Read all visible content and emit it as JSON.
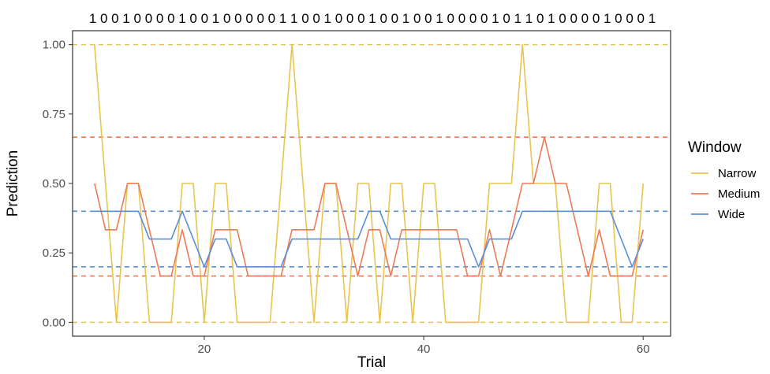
{
  "chart_data": {
    "type": "line",
    "sequence": "1 0 0 1 0 0 0 0 1 0 0 1 0 0 0 0 0 1 1 0 0 1 0 0 0 1 0 0 1 0 0 1 0 0 0 0 1 0 1 1 0 1 0 0 0 0 1 0 0 0 1",
    "xlabel": "Trial",
    "ylabel": "Prediction",
    "xlim": [
      8,
      62.5
    ],
    "ylim": [
      -0.05,
      1.05
    ],
    "x_ticks": [
      20,
      40,
      60
    ],
    "y_ticks": [
      0.0,
      0.25,
      0.5,
      0.75,
      1.0
    ],
    "y_tick_labels": [
      "0.00",
      "0.25",
      "0.50",
      "0.75",
      "1.00"
    ],
    "legend": {
      "title": "Window",
      "position": "right"
    },
    "x": [
      10,
      11,
      12,
      13,
      14,
      15,
      16,
      17,
      18,
      19,
      20,
      21,
      22,
      23,
      24,
      25,
      26,
      27,
      28,
      29,
      30,
      31,
      32,
      33,
      34,
      35,
      36,
      37,
      38,
      39,
      40,
      41,
      42,
      43,
      44,
      45,
      46,
      47,
      48,
      49,
      50,
      51,
      52,
      53,
      54,
      55,
      56,
      57,
      58,
      59,
      60
    ],
    "series": [
      {
        "name": "Narrow",
        "color": "#e8c44f",
        "values": [
          1,
          0.5,
          0,
          0.5,
          0.5,
          0,
          0,
          0,
          0.5,
          0.5,
          0,
          0.5,
          0.5,
          0,
          0,
          0,
          0,
          0.5,
          1,
          0.5,
          0,
          0.5,
          0.5,
          0,
          0.5,
          0.5,
          0,
          0.5,
          0.5,
          0,
          0.5,
          0.5,
          0,
          0,
          0,
          0,
          0.5,
          0.5,
          0.5,
          1,
          0.5,
          0.5,
          0.5,
          0,
          0,
          0,
          0.5,
          0.5,
          0,
          0,
          0.5
        ],
        "thresholds": [
          1.0,
          0.0
        ]
      },
      {
        "name": "Medium",
        "color": "#ee7a55",
        "values": [
          0.5,
          0.3333,
          0.3333,
          0.5,
          0.5,
          0.3333,
          0.1667,
          0.1667,
          0.3333,
          0.1667,
          0.1667,
          0.3333,
          0.3333,
          0.3333,
          0.1667,
          0.1667,
          0.1667,
          0.1667,
          0.3333,
          0.3333,
          0.3333,
          0.5,
          0.5,
          0.3333,
          0.1667,
          0.3333,
          0.3333,
          0.1667,
          0.3333,
          0.3333,
          0.3333,
          0.3333,
          0.3333,
          0.3333,
          0.1667,
          0.1667,
          0.3333,
          0.1667,
          0.3333,
          0.5,
          0.5,
          0.6667,
          0.5,
          0.5,
          0.3333,
          0.1667,
          0.3333,
          0.1667,
          0.1667,
          0.1667,
          0.3333
        ],
        "thresholds": [
          0.6667,
          0.1667
        ]
      },
      {
        "name": "Wide",
        "color": "#5b8fd9",
        "values": [
          0.4,
          0.4,
          0.4,
          0.4,
          0.4,
          0.3,
          0.3,
          0.3,
          0.4,
          0.3,
          0.2,
          0.3,
          0.3,
          0.2,
          0.2,
          0.2,
          0.2,
          0.2,
          0.3,
          0.3,
          0.3,
          0.3,
          0.3,
          0.3,
          0.3,
          0.4,
          0.4,
          0.3,
          0.3,
          0.3,
          0.3,
          0.3,
          0.3,
          0.3,
          0.3,
          0.2,
          0.3,
          0.3,
          0.3,
          0.4,
          0.4,
          0.4,
          0.4,
          0.4,
          0.4,
          0.4,
          0.4,
          0.4,
          0.3,
          0.2,
          0.3
        ],
        "thresholds": [
          0.4,
          0.2
        ]
      }
    ]
  }
}
